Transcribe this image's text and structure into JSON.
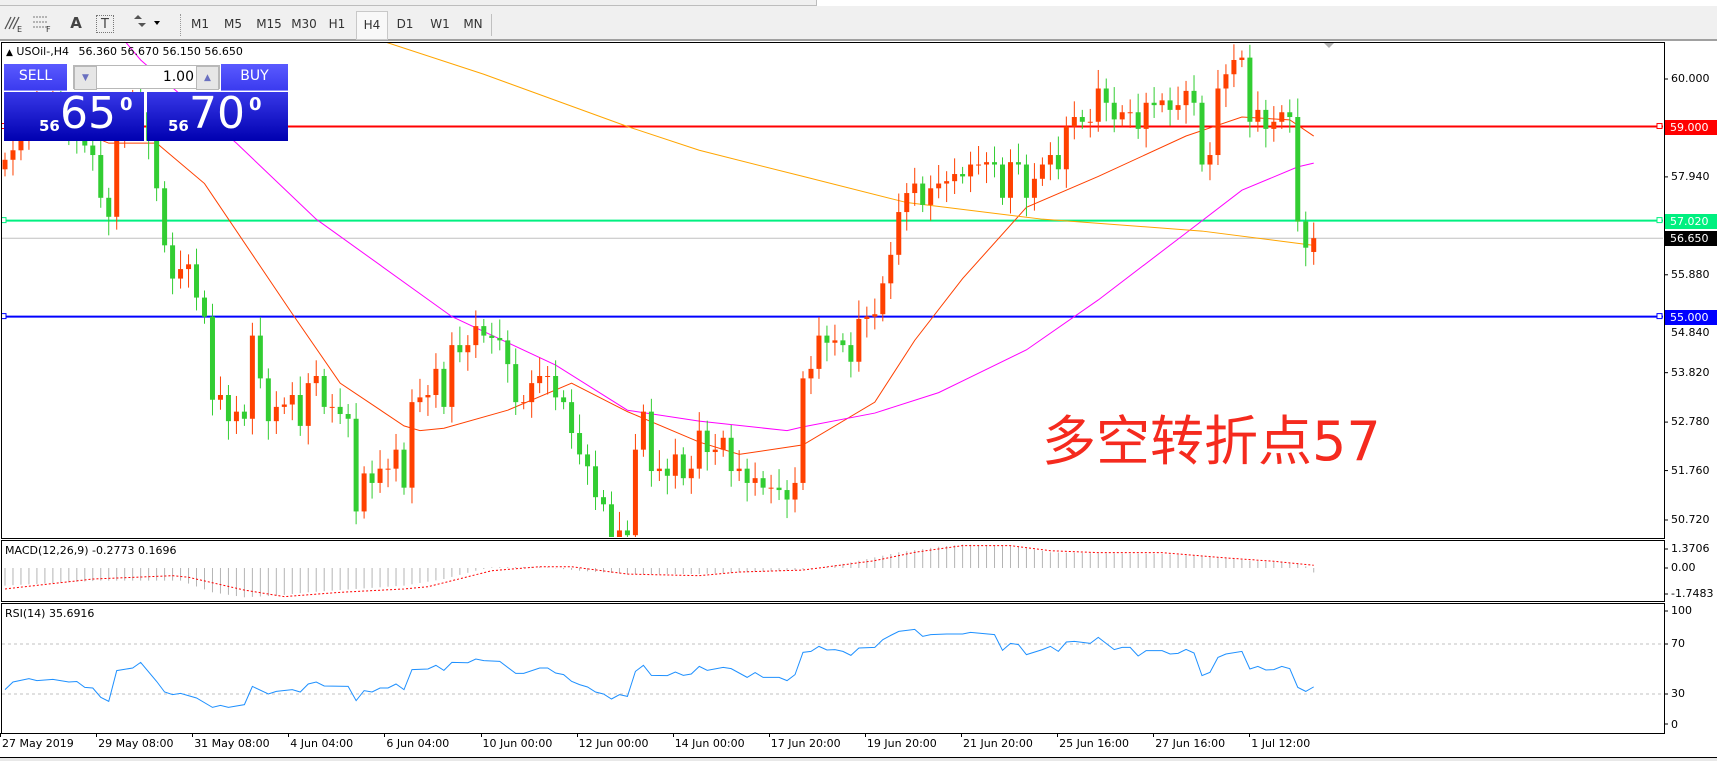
{
  "toolbar": {
    "icons": [
      "elliott-wave-icon",
      "fibonacci-icon",
      "text-icon",
      "text-label-icon",
      "arrows-dropdown-icon"
    ],
    "text_icon_glyph": "A",
    "label_icon_glyph": "T",
    "timeframes": [
      "M1",
      "M5",
      "M15",
      "M30",
      "H1",
      "H4",
      "D1",
      "W1",
      "MN"
    ],
    "active_timeframe": "H4"
  },
  "chart": {
    "symbol": "USOil-,H4",
    "ohlc": "56.360 56.670 56.150 56.650",
    "annotation": "多空转折点57",
    "annotation_color": "#f52a1e",
    "bull_color": "#ff4000",
    "bear_color": "#32cd32",
    "price_labels": [
      "60.000",
      "57.940",
      "55.880",
      "54.840",
      "53.820",
      "52.780",
      "51.760",
      "50.720"
    ],
    "price_label_values": [
      60.0,
      57.94,
      55.88,
      54.84,
      53.82,
      52.78,
      51.76,
      50.72
    ],
    "levels": [
      {
        "label": "59.000",
        "price": 59.0,
        "color": "#ff0000"
      },
      {
        "label": "57.020",
        "price": 57.02,
        "color": "#00f080"
      },
      {
        "label": "56.650",
        "price": 56.65,
        "color": "#000000"
      },
      {
        "label": "55.000",
        "price": 55.0,
        "color": "#0000ff"
      }
    ],
    "candles": {
      "last_open": 56.36,
      "closes": [
        58.3,
        58.5,
        58.9,
        59.3,
        59.5,
        59.2,
        59.6,
        59.4,
        59.0,
        58.7,
        58.6,
        58.4,
        57.5,
        57.1,
        58.7,
        59.2,
        59.5,
        59.3,
        58.7,
        57.7,
        56.5,
        55.8,
        56.0,
        56.1,
        55.4,
        55.0,
        53.25,
        53.35,
        52.8,
        53.0,
        52.85,
        54.6,
        53.7,
        52.8,
        53.1,
        53.15,
        53.35,
        52.7,
        53.6,
        53.75,
        53.1,
        53.1,
        52.95,
        52.85,
        50.9,
        51.7,
        51.5,
        51.8,
        51.8,
        52.2,
        51.4,
        53.2,
        53.3,
        53.35,
        53.9,
        53.1,
        54.4,
        54.25,
        54.4,
        54.8,
        54.6,
        54.55,
        54.5,
        54.0,
        53.2,
        53.2,
        53.6,
        53.75,
        53.75,
        53.3,
        53.2,
        52.55,
        52.1,
        51.85,
        51.2,
        51.05,
        50.2,
        50.5,
        50.4,
        52.2,
        53.0,
        51.75,
        51.8,
        51.65,
        52.1,
        51.6,
        51.8,
        52.6,
        52.15,
        52.2,
        52.45,
        51.75,
        51.8,
        51.5,
        51.6,
        51.4,
        51.4,
        51.35,
        51.15,
        51.5,
        53.7,
        53.9,
        54.6,
        54.45,
        54.5,
        54.4,
        54.05,
        54.95,
        55.0,
        55.05,
        55.7,
        56.3,
        57.2,
        57.6,
        57.8,
        57.35,
        57.7,
        57.8,
        57.85,
        58.0,
        57.95,
        58.2,
        58.2,
        58.25,
        58.2,
        57.5,
        58.25,
        58.2,
        57.5,
        57.9,
        58.2,
        58.4,
        58.1,
        59.0,
        59.2,
        59.1,
        59.1,
        59.8,
        59.5,
        59.15,
        59.3,
        59.3,
        58.95,
        59.5,
        59.45,
        59.55,
        59.35,
        59.45,
        59.75,
        59.5,
        58.2,
        58.4,
        59.8,
        60.1,
        60.4,
        60.45,
        59.1,
        59.35,
        58.95,
        59.1,
        59.3,
        59.2,
        57.0,
        56.45,
        56.65
      ]
    },
    "moving_averages": [
      {
        "color": "#ff4000",
        "points": [
          [
            8,
            59.0
          ],
          [
            13,
            58.65
          ],
          [
            19,
            58.65
          ],
          [
            25,
            57.8
          ],
          [
            36,
            55.06
          ],
          [
            42,
            53.6
          ],
          [
            50,
            52.7
          ],
          [
            52,
            52.6
          ],
          [
            55,
            52.65
          ],
          [
            63,
            53.03
          ],
          [
            71,
            53.6
          ],
          [
            78,
            53.0
          ],
          [
            87,
            52.36
          ],
          [
            92,
            52.1
          ],
          [
            100,
            52.3
          ],
          [
            109,
            53.2
          ],
          [
            114,
            54.5
          ],
          [
            120,
            55.8
          ],
          [
            128,
            57.3
          ],
          [
            137,
            57.95
          ],
          [
            148,
            58.8
          ],
          [
            155,
            59.2
          ],
          [
            161,
            59.14
          ],
          [
            164,
            58.8
          ]
        ]
      },
      {
        "color": "#ff00ff",
        "points": [
          [
            14,
            61.0
          ],
          [
            17,
            60.4
          ],
          [
            29,
            58.65
          ],
          [
            39,
            57.05
          ],
          [
            56,
            55.0
          ],
          [
            69,
            53.98
          ],
          [
            78,
            53.03
          ],
          [
            87,
            52.8
          ],
          [
            98,
            52.6
          ],
          [
            100,
            52.68
          ],
          [
            109,
            52.97
          ],
          [
            117,
            53.4
          ],
          [
            128,
            54.3
          ],
          [
            137,
            55.35
          ],
          [
            148,
            56.76
          ],
          [
            155,
            57.66
          ],
          [
            162,
            58.15
          ],
          [
            164,
            58.23
          ]
        ]
      },
      {
        "color": "#ffa500",
        "points": [
          [
            44,
            61.0
          ],
          [
            48,
            60.76
          ],
          [
            60,
            60.1
          ],
          [
            78,
            59.0
          ],
          [
            87,
            58.5
          ],
          [
            100,
            57.95
          ],
          [
            113,
            57.4
          ],
          [
            130,
            57.05
          ],
          [
            150,
            56.8
          ],
          [
            164,
            56.5
          ]
        ]
      }
    ]
  },
  "trade_panel": {
    "sell_label": "SELL",
    "buy_label": "BUY",
    "lot": "1.00",
    "sell_price": {
      "prefix": "56",
      "big": "65",
      "sup": "0"
    },
    "buy_price": {
      "prefix": "56",
      "big": "70",
      "sup": "0"
    }
  },
  "macd": {
    "title": "MACD(12,26,9) -0.2773 0.1696",
    "axis_labels": [
      "1.3706",
      "0.00",
      "-1.7483"
    ],
    "histogram": [
      [
        0,
        -1.1
      ],
      [
        12,
        -0.79
      ],
      [
        22,
        -0.79
      ],
      [
        26,
        -1.52
      ],
      [
        30,
        -1.83
      ],
      [
        34,
        -1.73
      ],
      [
        38,
        -1.52
      ],
      [
        44,
        -1.31
      ],
      [
        50,
        -1.1
      ],
      [
        55,
        -0.69
      ],
      [
        59,
        -0.17
      ],
      [
        61,
        0.04
      ],
      [
        67,
        0.08
      ],
      [
        72,
        -0.17
      ],
      [
        78,
        -0.38
      ],
      [
        87,
        -0.38
      ],
      [
        98,
        -0.17
      ],
      [
        102,
        0.0
      ],
      [
        106,
        0.35
      ],
      [
        112,
        0.98
      ],
      [
        117,
        1.33
      ],
      [
        120,
        1.46
      ],
      [
        126,
        1.4
      ],
      [
        131,
        0.98
      ],
      [
        137,
        0.92
      ],
      [
        145,
        0.88
      ],
      [
        151,
        0.71
      ],
      [
        156,
        0.46
      ],
      [
        162,
        0.29
      ],
      [
        163,
        0.1
      ],
      [
        164,
        -0.28
      ]
    ],
    "signal": [
      [
        0,
        -1.31
      ],
      [
        11,
        -0.69
      ],
      [
        21,
        -0.48
      ],
      [
        23,
        -0.58
      ],
      [
        30,
        -1.38
      ],
      [
        35,
        -1.79
      ],
      [
        42,
        -1.52
      ],
      [
        50,
        -1.31
      ],
      [
        53,
        -1.17
      ],
      [
        61,
        -0.17
      ],
      [
        67,
        0.08
      ],
      [
        71,
        0.08
      ],
      [
        78,
        -0.38
      ],
      [
        87,
        -0.48
      ],
      [
        92,
        -0.25
      ],
      [
        100,
        -0.13
      ],
      [
        109,
        0.46
      ],
      [
        114,
        0.98
      ],
      [
        120,
        1.4
      ],
      [
        126,
        1.4
      ],
      [
        131,
        1.08
      ],
      [
        137,
        0.96
      ],
      [
        145,
        0.96
      ],
      [
        153,
        0.63
      ],
      [
        159,
        0.42
      ],
      [
        164,
        0.17
      ]
    ],
    "histogram_color": "#b4b4b4",
    "signal_color": "#ff0000"
  },
  "rsi": {
    "title": "RSI(14) 35.6916",
    "axis_labels": [
      "100",
      "70",
      "30",
      "0"
    ],
    "levels": [
      70,
      30
    ],
    "color": "#1e90ff",
    "values": [
      [
        0,
        33.5
      ],
      [
        1,
        39.6
      ],
      [
        3,
        42.3
      ],
      [
        4,
        40.7
      ],
      [
        6,
        41.7
      ],
      [
        8,
        39.6
      ],
      [
        9,
        40
      ],
      [
        10,
        35.3
      ],
      [
        11,
        34.8
      ],
      [
        12,
        27.3
      ],
      [
        13,
        24.1
      ],
      [
        14,
        48.7
      ],
      [
        16,
        50.8
      ],
      [
        17,
        55.3
      ],
      [
        19,
        40.1
      ],
      [
        20,
        31.6
      ],
      [
        21,
        29.5
      ],
      [
        22,
        30.5
      ],
      [
        24,
        26.8
      ],
      [
        26,
        19.3
      ],
      [
        27,
        20.9
      ],
      [
        28,
        19.3
      ],
      [
        30,
        21.5
      ],
      [
        31,
        36.1
      ],
      [
        33,
        30
      ],
      [
        34,
        32.1
      ],
      [
        36,
        33.5
      ],
      [
        37,
        31.6
      ],
      [
        38,
        38
      ],
      [
        39,
        39.6
      ],
      [
        40,
        36.4
      ],
      [
        43,
        36.1
      ],
      [
        44,
        24.7
      ],
      [
        45,
        32.7
      ],
      [
        46,
        31.6
      ],
      [
        47,
        34.8
      ],
      [
        48,
        34.8
      ],
      [
        49,
        38
      ],
      [
        50,
        33.5
      ],
      [
        51,
        49.5
      ],
      [
        53,
        50
      ],
      [
        54,
        52.9
      ],
      [
        55,
        48.9
      ],
      [
        56,
        55.3
      ],
      [
        58,
        55
      ],
      [
        59,
        58
      ],
      [
        60,
        56.7
      ],
      [
        62,
        56.1
      ],
      [
        64,
        46.5
      ],
      [
        65,
        46.5
      ],
      [
        67,
        50.8
      ],
      [
        68,
        50.8
      ],
      [
        69,
        46.8
      ],
      [
        70,
        45.5
      ],
      [
        71,
        40.1
      ],
      [
        72,
        37.5
      ],
      [
        73,
        35.6
      ],
      [
        74,
        31.6
      ],
      [
        75,
        30
      ],
      [
        76,
        26
      ],
      [
        77,
        29.5
      ],
      [
        78,
        28.1
      ],
      [
        79,
        48.1
      ],
      [
        80,
        52.9
      ],
      [
        81,
        44.9
      ],
      [
        83,
        44.7
      ],
      [
        84,
        47.6
      ],
      [
        85,
        44.9
      ],
      [
        86,
        46
      ],
      [
        87,
        52.1
      ],
      [
        88,
        48.9
      ],
      [
        90,
        51.3
      ],
      [
        91,
        50.3
      ],
      [
        93,
        43.3
      ],
      [
        94,
        47.1
      ],
      [
        95,
        43.3
      ],
      [
        97,
        43.3
      ],
      [
        98,
        40.7
      ],
      [
        99,
        45.5
      ],
      [
        100,
        63.3
      ],
      [
        101,
        64.1
      ],
      [
        102,
        68.1
      ],
      [
        103,
        65.2
      ],
      [
        104,
        65.5
      ],
      [
        105,
        64.1
      ],
      [
        106,
        60.9
      ],
      [
        107,
        66.8
      ],
      [
        109,
        67.3
      ],
      [
        110,
        73.5
      ],
      [
        111,
        76.9
      ],
      [
        112,
        80.1
      ],
      [
        114,
        81.7
      ],
      [
        115,
        76.1
      ],
      [
        116,
        77.5
      ],
      [
        118,
        78
      ],
      [
        120,
        78
      ],
      [
        121,
        79.3
      ],
      [
        124,
        77.5
      ],
      [
        125,
        64.9
      ],
      [
        126,
        70.5
      ],
      [
        127,
        69.5
      ],
      [
        128,
        61.5
      ],
      [
        130,
        65.5
      ],
      [
        131,
        68.1
      ],
      [
        132,
        64.1
      ],
      [
        133,
        71.6
      ],
      [
        134,
        72.1
      ],
      [
        136,
        70.5
      ],
      [
        137,
        75.3
      ],
      [
        139,
        65.5
      ],
      [
        140,
        67.3
      ],
      [
        141,
        67.3
      ],
      [
        142,
        60.4
      ],
      [
        143,
        64.7
      ],
      [
        145,
        64.7
      ],
      [
        146,
        62
      ],
      [
        147,
        62.5
      ],
      [
        148,
        65.7
      ],
      [
        149,
        62.8
      ],
      [
        150,
        44.7
      ],
      [
        151,
        47.3
      ],
      [
        152,
        59.3
      ],
      [
        153,
        62
      ],
      [
        155,
        64.1
      ],
      [
        156,
        50
      ],
      [
        157,
        52.1
      ],
      [
        158,
        49.2
      ],
      [
        159,
        49.5
      ],
      [
        160,
        52.1
      ],
      [
        161,
        50.3
      ],
      [
        162,
        35.3
      ],
      [
        163,
        32.1
      ],
      [
        164,
        35.7
      ]
    ]
  },
  "time_axis": [
    "27 May 2019",
    "29 May 08:00",
    "31 May 08:00",
    "4 Jun 04:00",
    "6 Jun 04:00",
    "10 Jun 00:00",
    "12 Jun 00:00",
    "14 Jun 00:00",
    "17 Jun 20:00",
    "19 Jun 20:00",
    "21 Jun 20:00",
    "25 Jun 16:00",
    "27 Jun 16:00",
    "1 Jul 12:00"
  ]
}
